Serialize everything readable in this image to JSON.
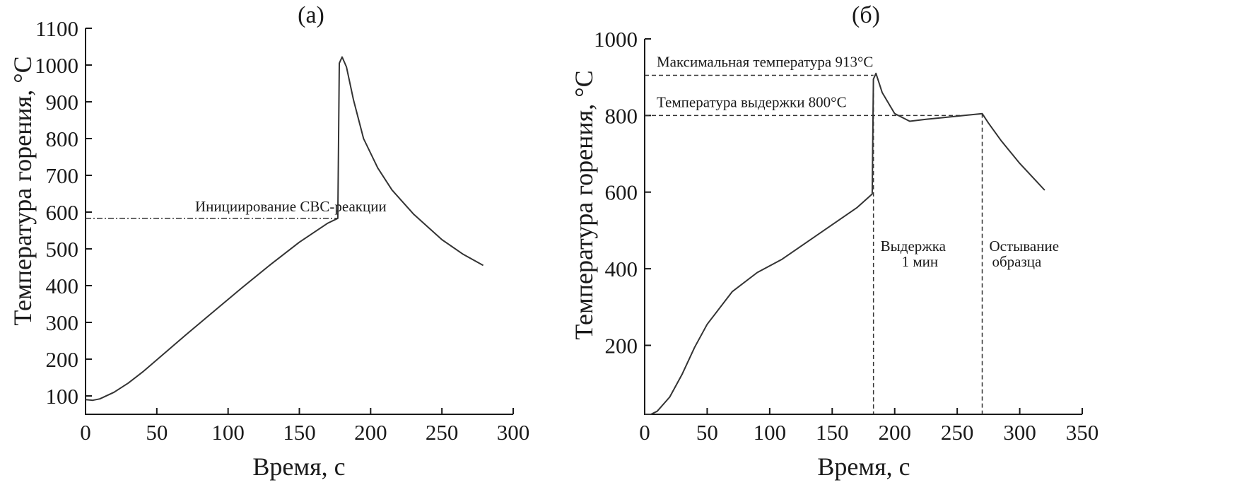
{
  "chart_data": [
    {
      "type": "line",
      "title": "(a)",
      "xlabel": "Время, с",
      "ylabel": "Температура горения, °C",
      "xlim": [
        0,
        300
      ],
      "ylim": [
        50,
        1100
      ],
      "xticks": [
        0,
        50,
        100,
        150,
        200,
        250,
        300
      ],
      "yticks": [
        100,
        200,
        300,
        400,
        500,
        600,
        700,
        800,
        900,
        1000,
        1100
      ],
      "grid": false,
      "series": [
        {
          "x": [
            0,
            5,
            10,
            20,
            30,
            40,
            50,
            70,
            90,
            110,
            130,
            150,
            170,
            177,
            178,
            180,
            183,
            188,
            195,
            205,
            215,
            230,
            250,
            265,
            279
          ],
          "y": [
            90,
            88,
            92,
            110,
            135,
            165,
            198,
            265,
            330,
            395,
            458,
            518,
            570,
            583,
            1005,
            1022,
            995,
            905,
            800,
            720,
            660,
            595,
            525,
            485,
            455
          ]
        }
      ],
      "annotations": [
        {
          "text": "Инициирование СВС-реакции",
          "y": 583,
          "x_from": 0,
          "x_to": 177,
          "style": "dashdot"
        }
      ]
    },
    {
      "type": "line",
      "title": "(б)",
      "xlabel": "Время, с",
      "ylabel": "Температура горения, °C",
      "xlim": [
        0,
        350
      ],
      "ylim": [
        20,
        1000
      ],
      "xticks": [
        0,
        50,
        100,
        150,
        200,
        250,
        300,
        350
      ],
      "yticks": [
        200,
        400,
        600,
        800,
        1000
      ],
      "grid": false,
      "series": [
        {
          "x": [
            0,
            5,
            10,
            20,
            30,
            40,
            50,
            70,
            90,
            110,
            130,
            150,
            170,
            182,
            183,
            185,
            190,
            200,
            212,
            225,
            240,
            255,
            270,
            275,
            285,
            300,
            320
          ],
          "y": [
            20,
            20,
            28,
            65,
            125,
            195,
            255,
            340,
            390,
            425,
            470,
            515,
            560,
            595,
            895,
            910,
            860,
            805,
            785,
            790,
            795,
            800,
            805,
            780,
            735,
            675,
            605
          ]
        }
      ],
      "annotations": [
        {
          "text": "Максимальная температура 913°C",
          "y": 905,
          "x_from": 0,
          "x_to": 183,
          "style": "dash"
        },
        {
          "text": "Температура выдержки 800°C",
          "y": 800,
          "x_from": 0,
          "x_to": 255,
          "style": "dash"
        },
        {
          "text": "Выдержка",
          "text2": "1 мин",
          "x": 183,
          "style": "dash-vertical"
        },
        {
          "text": "Остывание",
          "text2": "образца",
          "x": 270,
          "style": "dash-vertical"
        }
      ]
    }
  ]
}
